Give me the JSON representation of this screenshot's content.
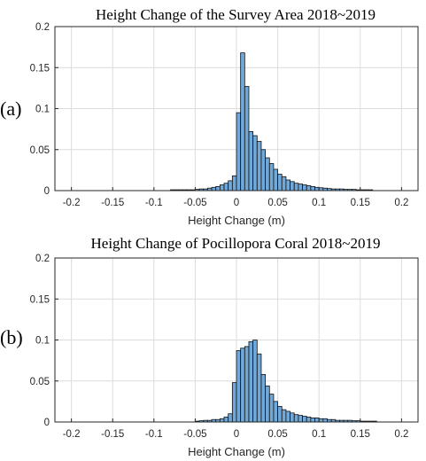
{
  "chart_data": [
    {
      "type": "bar",
      "panel_label": "(a)",
      "title": "Height Change of the Survey Area 2018~2019",
      "xlabel": "Height Change (m)",
      "ylabel": "",
      "xlim": [
        -0.22,
        0.22
      ],
      "ylim": [
        0,
        0.2
      ],
      "grid": true,
      "xticks": [
        -0.2,
        -0.15,
        -0.1,
        -0.05,
        0,
        0.05,
        0.1,
        0.15,
        0.2
      ],
      "xtick_labels": [
        "-0.2",
        "-0.15",
        "-0.1",
        "-0.05",
        "0",
        "0.05",
        "0.1",
        "0.15",
        "0.2"
      ],
      "yticks": [
        0,
        0.05,
        0.1,
        0.15,
        0.2
      ],
      "ytick_labels": [
        "0",
        "0.05",
        "0.1",
        "0.15",
        "0.2"
      ],
      "bin_width": 0.005,
      "bin_start": -0.08,
      "values": [
        0.001,
        0.001,
        0.001,
        0.001,
        0.001,
        0.001,
        0.0015,
        0.002,
        0.002,
        0.003,
        0.004,
        0.005,
        0.007,
        0.009,
        0.012,
        0.018,
        0.095,
        0.168,
        0.127,
        0.072,
        0.067,
        0.06,
        0.05,
        0.04,
        0.033,
        0.026,
        0.02,
        0.017,
        0.013,
        0.011,
        0.009,
        0.008,
        0.007,
        0.006,
        0.005,
        0.004,
        0.0035,
        0.003,
        0.0025,
        0.002,
        0.002,
        0.002,
        0.0015,
        0.0015,
        0.0015,
        0.001,
        0.001,
        0.001,
        0.001
      ]
    },
    {
      "type": "bar",
      "panel_label": "(b)",
      "title": "Height Change of Pocillopora Coral 2018~2019",
      "xlabel": "Height Change (m)",
      "ylabel": "",
      "xlim": [
        -0.22,
        0.22
      ],
      "ylim": [
        0,
        0.2
      ],
      "grid": true,
      "xticks": [
        -0.2,
        -0.15,
        -0.1,
        -0.05,
        0,
        0.05,
        0.1,
        0.15,
        0.2
      ],
      "xtick_labels": [
        "-0.2",
        "-0.15",
        "-0.1",
        "-0.05",
        "0",
        "0.05",
        "0.1",
        "0.15",
        "0.2"
      ],
      "yticks": [
        0,
        0.05,
        0.1,
        0.15,
        0.2
      ],
      "ytick_labels": [
        "0",
        "0.05",
        "0.1",
        "0.15",
        "0.2"
      ],
      "bin_width": 0.005,
      "bin_start": -0.05,
      "values": [
        0.001,
        0.0015,
        0.002,
        0.002,
        0.003,
        0.003,
        0.004,
        0.006,
        0.01,
        0.048,
        0.087,
        0.09,
        0.092,
        0.098,
        0.1,
        0.083,
        0.058,
        0.044,
        0.034,
        0.025,
        0.019,
        0.015,
        0.013,
        0.011,
        0.009,
        0.008,
        0.007,
        0.006,
        0.005,
        0.005,
        0.004,
        0.004,
        0.003,
        0.003,
        0.002,
        0.002,
        0.002,
        0.002,
        0.0015,
        0.0015,
        0.001,
        0.001,
        0.001,
        0.001
      ]
    }
  ]
}
